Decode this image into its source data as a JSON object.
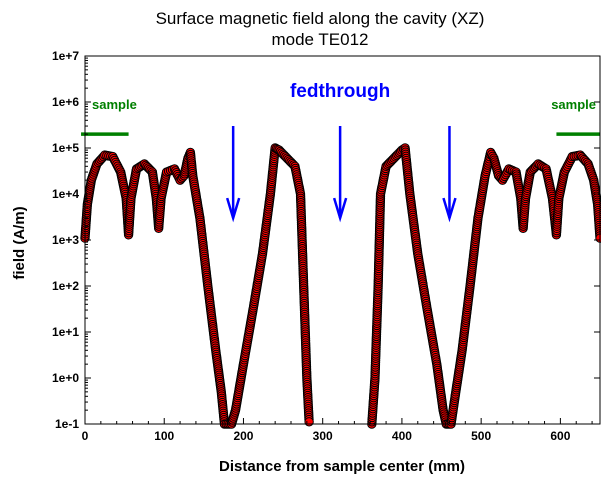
{
  "chart_data": {
    "type": "scatter",
    "title": "Surface magnetic field along the cavity (XZ)",
    "subtitle": "mode TE012",
    "xlabel": "Distance from sample center (mm)",
    "ylabel": "field (A/m)",
    "xlim": [
      0,
      650
    ],
    "ylim": [
      0.1,
      10000000
    ],
    "yscale": "log",
    "x_ticks": [
      0,
      100,
      200,
      300,
      400,
      500,
      600
    ],
    "y_ticks": [
      0.1,
      1,
      10,
      100,
      1000,
      10000,
      100000,
      1000000,
      10000000
    ],
    "y_tick_labels": [
      "1e-1",
      "1e+0",
      "1e+1",
      "1e+2",
      "1e+3",
      "1e+4",
      "1e+5",
      "1e+6",
      "1e+7"
    ],
    "grid": false,
    "marker_fill": "#ff0000",
    "marker_edge": "#000000",
    "series": [
      {
        "values": [
          [
            0,
            1100
          ],
          [
            3,
            6000
          ],
          [
            8,
            20000
          ],
          [
            15,
            45000
          ],
          [
            25,
            70000
          ],
          [
            35,
            65000
          ],
          [
            45,
            30000
          ],
          [
            52,
            8000
          ],
          [
            55,
            1300
          ],
          [
            58,
            8000
          ],
          [
            65,
            35000
          ],
          [
            75,
            45000
          ],
          [
            85,
            30000
          ],
          [
            90,
            8000
          ],
          [
            93,
            1800
          ],
          [
            96,
            8000
          ],
          [
            103,
            30000
          ],
          [
            113,
            35000
          ],
          [
            120,
            20000
          ],
          [
            125,
            25000
          ],
          [
            130,
            60000
          ],
          [
            133,
            80000
          ],
          [
            136,
            25000
          ],
          [
            145,
            3000
          ],
          [
            155,
            100
          ],
          [
            165,
            4
          ],
          [
            172,
            0.5
          ],
          [
            176,
            0.1
          ],
          [
            185,
            0.1
          ],
          [
            190,
            0.2
          ],
          [
            200,
            2
          ],
          [
            212,
            30
          ],
          [
            224,
            500
          ],
          [
            234,
            10000
          ],
          [
            240,
            100000
          ],
          [
            245,
            90000
          ],
          [
            255,
            60000
          ],
          [
            265,
            40000
          ],
          [
            272,
            10000
          ],
          [
            276,
            100
          ],
          [
            280,
            1
          ],
          [
            283,
            0.1
          ],
          [
            362,
            0.1
          ],
          [
            366,
            1
          ],
          [
            370,
            100
          ],
          [
            373,
            10000
          ],
          [
            380,
            40000
          ],
          [
            390,
            60000
          ],
          [
            400,
            90000
          ],
          [
            404,
            100000
          ],
          [
            410,
            10000
          ],
          [
            420,
            500
          ],
          [
            432,
            30
          ],
          [
            444,
            2
          ],
          [
            452,
            0.2
          ],
          [
            456,
            0.1
          ],
          [
            462,
            0.1
          ],
          [
            468,
            0.5
          ],
          [
            476,
            4
          ],
          [
            486,
            100
          ],
          [
            496,
            3000
          ],
          [
            505,
            25000
          ],
          [
            512,
            80000
          ],
          [
            516,
            60000
          ],
          [
            522,
            25000
          ],
          [
            527,
            20000
          ],
          [
            535,
            35000
          ],
          [
            544,
            30000
          ],
          [
            550,
            8000
          ],
          [
            553,
            1800
          ],
          [
            556,
            8000
          ],
          [
            562,
            30000
          ],
          [
            572,
            45000
          ],
          [
            582,
            35000
          ],
          [
            590,
            8000
          ],
          [
            595,
            1300
          ],
          [
            598,
            8000
          ],
          [
            605,
            30000
          ],
          [
            615,
            65000
          ],
          [
            625,
            70000
          ],
          [
            635,
            45000
          ],
          [
            642,
            20000
          ],
          [
            647,
            6000
          ],
          [
            650,
            1100
          ]
        ]
      }
    ],
    "annotations": {
      "feedthrough_label": "fedthrough",
      "feedthrough_arrows_x": [
        187,
        322,
        460
      ],
      "feedthrough_arrow_y_range": [
        300000,
        3000
      ],
      "feedthrough_color": "#0000ff",
      "sample_left": "sample",
      "sample_right": "sample",
      "sample_left_bar_x": [
        -5,
        55
      ],
      "sample_right_bar_x": [
        595,
        655
      ],
      "sample_bar_y": 200000,
      "sample_color": "#008000"
    }
  }
}
